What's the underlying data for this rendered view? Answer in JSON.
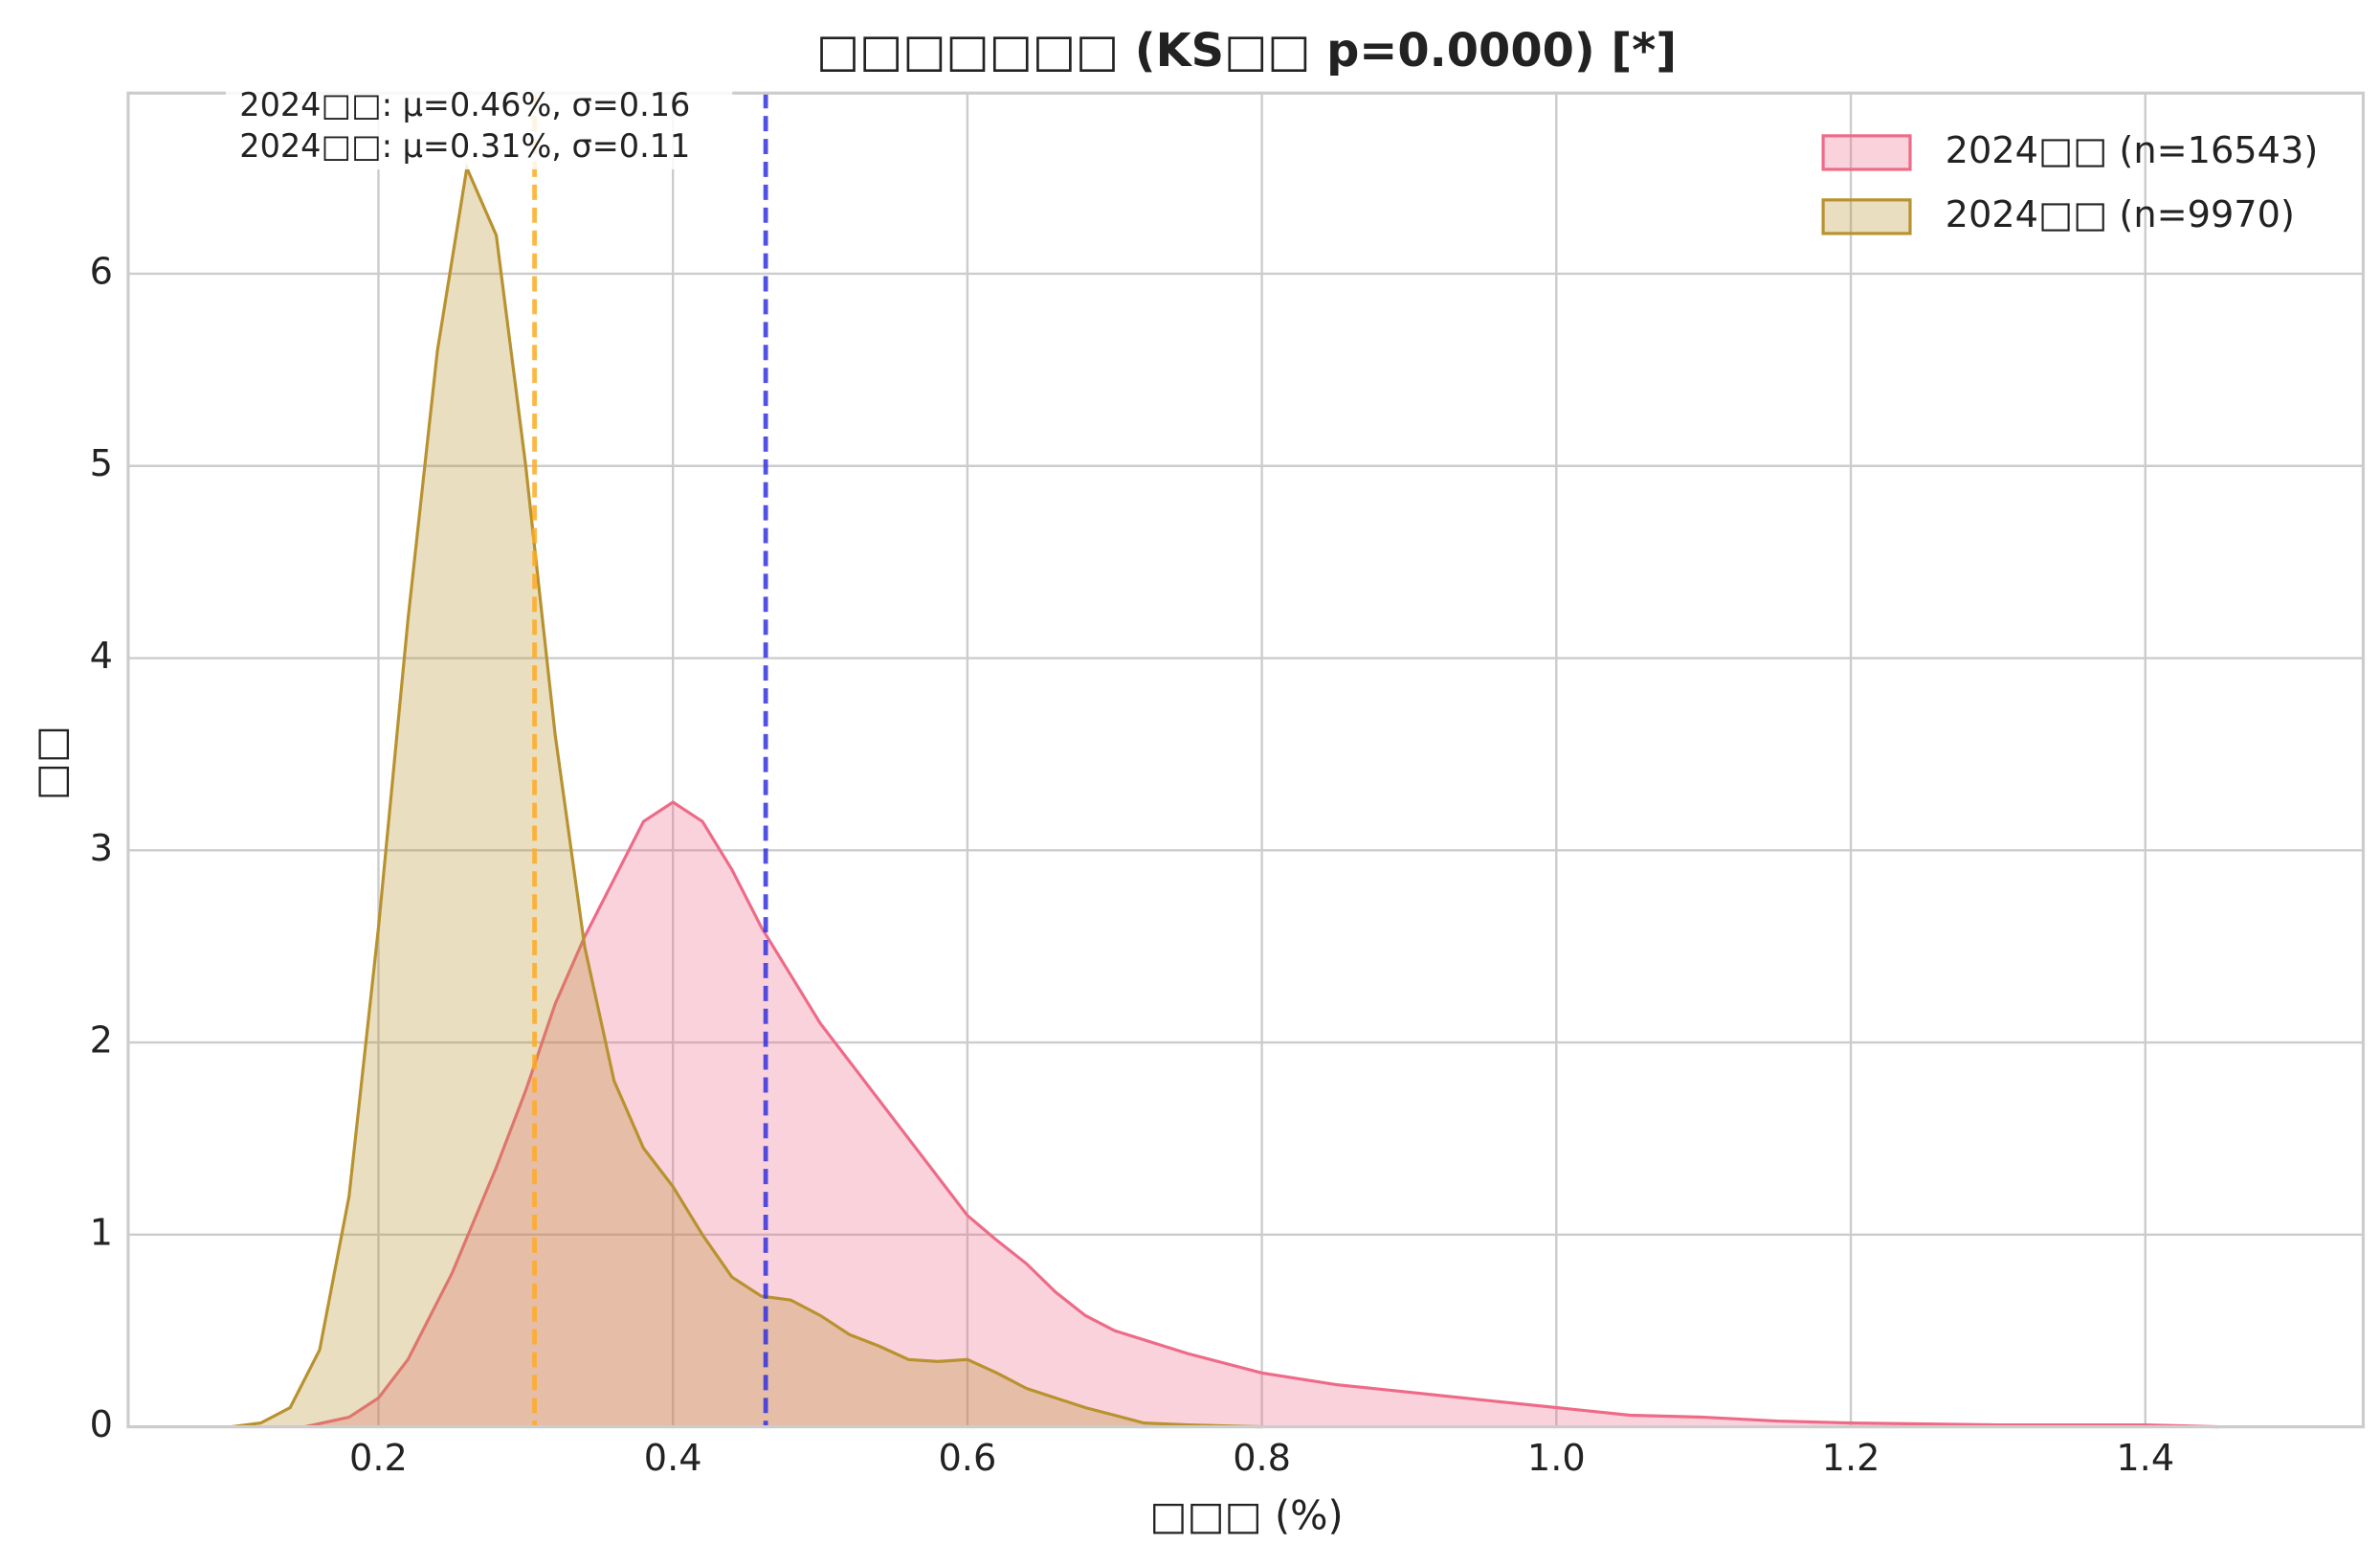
{
  "chart_data": {
    "type": "kde",
    "title": "□□□□□□□ (KS□□ p=0.0000) [*]",
    "x_label": "□□□ (%)",
    "y_label": "□□",
    "annotations": [
      "2024□□: μ=0.46%, σ=0.16",
      "2024□□: μ=0.31%, σ=0.11"
    ],
    "series": [
      {
        "name": "2024□□ (n=16543)",
        "color": "#ee6b88",
        "x": [
          0.15,
          0.18,
          0.2,
          0.22,
          0.25,
          0.28,
          0.3,
          0.32,
          0.34,
          0.36,
          0.38,
          0.4,
          0.42,
          0.44,
          0.46,
          0.48,
          0.5,
          0.52,
          0.54,
          0.56,
          0.58,
          0.6,
          0.62,
          0.64,
          0.66,
          0.68,
          0.7,
          0.75,
          0.8,
          0.85,
          0.9,
          0.95,
          1.0,
          1.05,
          1.1,
          1.15,
          1.2,
          1.3,
          1.4,
          1.45
        ],
        "values": [
          0,
          0.05,
          0.15,
          0.35,
          0.8,
          1.35,
          1.75,
          2.2,
          2.55,
          2.85,
          3.15,
          3.25,
          3.15,
          2.9,
          2.6,
          2.35,
          2.1,
          1.9,
          1.7,
          1.5,
          1.3,
          1.1,
          0.97,
          0.85,
          0.7,
          0.58,
          0.5,
          0.38,
          0.28,
          0.22,
          0.18,
          0.14,
          0.1,
          0.06,
          0.05,
          0.03,
          0.02,
          0.01,
          0.01,
          0
        ]
      },
      {
        "name": "2024□□ (n=9970)",
        "color": "#b8922f",
        "x": [
          0.1,
          0.12,
          0.14,
          0.16,
          0.18,
          0.2,
          0.22,
          0.24,
          0.26,
          0.28,
          0.3,
          0.31,
          0.32,
          0.34,
          0.36,
          0.38,
          0.4,
          0.42,
          0.44,
          0.46,
          0.48,
          0.5,
          0.52,
          0.54,
          0.56,
          0.58,
          0.6,
          0.62,
          0.64,
          0.66,
          0.68,
          0.7,
          0.72,
          0.75,
          0.8
        ],
        "values": [
          0,
          0.02,
          0.1,
          0.4,
          1.2,
          2.6,
          4.2,
          5.6,
          6.55,
          6.2,
          5.0,
          4.3,
          3.6,
          2.5,
          1.8,
          1.45,
          1.25,
          1.0,
          0.78,
          0.68,
          0.66,
          0.58,
          0.48,
          0.42,
          0.35,
          0.34,
          0.35,
          0.28,
          0.2,
          0.15,
          0.1,
          0.06,
          0.02,
          0.01,
          0
        ]
      }
    ],
    "vlines": [
      {
        "value": 0.463,
        "color": "#3333dd"
      },
      {
        "value": 0.306,
        "color": "#ffaa22"
      }
    ],
    "xlim": [
      0.03,
      1.548
    ],
    "ylim": [
      0,
      6.94
    ],
    "xticks": [
      0.2,
      0.4,
      0.6,
      0.8,
      {
        "value": 1,
        "label": "1.0"
      },
      1.2,
      1.4
    ],
    "yticks": [
      0,
      1,
      2,
      3,
      4,
      5,
      6
    ],
    "grid": true,
    "legend": "upper right"
  }
}
